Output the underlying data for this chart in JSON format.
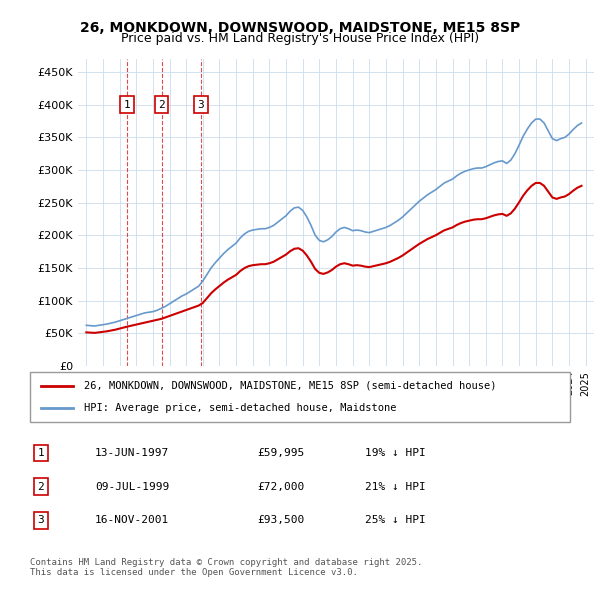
{
  "title_line1": "26, MONKDOWN, DOWNSWOOD, MAIDSTONE, ME15 8SP",
  "title_line2": "Price paid vs. HM Land Registry's House Price Index (HPI)",
  "sale_dates": [
    "1997-06-13",
    "1999-07-09",
    "2001-11-16"
  ],
  "sale_prices": [
    59995,
    72000,
    93500
  ],
  "sale_labels": [
    "1",
    "2",
    "3"
  ],
  "legend_line1": "26, MONKDOWN, DOWNSWOOD, MAIDSTONE, ME15 8SP (semi-detached house)",
  "legend_line2": "HPI: Average price, semi-detached house, Maidstone",
  "table_data": [
    [
      "1",
      "13-JUN-1997",
      "£59,995",
      "19% ↓ HPI"
    ],
    [
      "2",
      "09-JUL-1999",
      "£72,000",
      "21% ↓ HPI"
    ],
    [
      "3",
      "16-NOV-2001",
      "£93,500",
      "25% ↓ HPI"
    ]
  ],
  "footer": "Contains HM Land Registry data © Crown copyright and database right 2025.\nThis data is licensed under the Open Government Licence v3.0.",
  "price_color": "#cc0000",
  "hpi_color": "#6699cc",
  "ylim": [
    0,
    470000
  ],
  "yticks": [
    0,
    50000,
    100000,
    150000,
    200000,
    250000,
    300000,
    350000,
    400000,
    450000
  ],
  "hpi_data": {
    "dates": [
      1995.0,
      1995.25,
      1995.5,
      1995.75,
      1996.0,
      1996.25,
      1996.5,
      1996.75,
      1997.0,
      1997.25,
      1997.5,
      1997.75,
      1998.0,
      1998.25,
      1998.5,
      1998.75,
      1999.0,
      1999.25,
      1999.5,
      1999.75,
      2000.0,
      2000.25,
      2000.5,
      2000.75,
      2001.0,
      2001.25,
      2001.5,
      2001.75,
      2002.0,
      2002.25,
      2002.5,
      2002.75,
      2003.0,
      2003.25,
      2003.5,
      2003.75,
      2004.0,
      2004.25,
      2004.5,
      2004.75,
      2005.0,
      2005.25,
      2005.5,
      2005.75,
      2006.0,
      2006.25,
      2006.5,
      2006.75,
      2007.0,
      2007.25,
      2007.5,
      2007.75,
      2008.0,
      2008.25,
      2008.5,
      2008.75,
      2009.0,
      2009.25,
      2009.5,
      2009.75,
      2010.0,
      2010.25,
      2010.5,
      2010.75,
      2011.0,
      2011.25,
      2011.5,
      2011.75,
      2012.0,
      2012.25,
      2012.5,
      2012.75,
      2013.0,
      2013.25,
      2013.5,
      2013.75,
      2014.0,
      2014.25,
      2014.5,
      2014.75,
      2015.0,
      2015.25,
      2015.5,
      2015.75,
      2016.0,
      2016.25,
      2016.5,
      2016.75,
      2017.0,
      2017.25,
      2017.5,
      2017.75,
      2018.0,
      2018.25,
      2018.5,
      2018.75,
      2019.0,
      2019.25,
      2019.5,
      2019.75,
      2020.0,
      2020.25,
      2020.5,
      2020.75,
      2021.0,
      2021.25,
      2021.5,
      2021.75,
      2022.0,
      2022.25,
      2022.5,
      2022.75,
      2023.0,
      2023.25,
      2023.5,
      2023.75,
      2024.0,
      2024.25,
      2024.5,
      2024.75
    ],
    "values": [
      62000,
      61500,
      61000,
      62000,
      63000,
      64000,
      65500,
      67000,
      69000,
      71000,
      73000,
      75000,
      77000,
      79000,
      81000,
      82000,
      83000,
      85000,
      88000,
      91000,
      95000,
      99000,
      103000,
      107000,
      110000,
      114000,
      118000,
      122000,
      130000,
      140000,
      150000,
      158000,
      165000,
      172000,
      178000,
      183000,
      188000,
      196000,
      202000,
      206000,
      208000,
      209000,
      210000,
      210000,
      212000,
      215000,
      220000,
      225000,
      230000,
      237000,
      242000,
      243000,
      238000,
      228000,
      215000,
      200000,
      192000,
      190000,
      193000,
      198000,
      205000,
      210000,
      212000,
      210000,
      207000,
      208000,
      207000,
      205000,
      204000,
      206000,
      208000,
      210000,
      212000,
      215000,
      219000,
      223000,
      228000,
      234000,
      240000,
      246000,
      252000,
      257000,
      262000,
      266000,
      270000,
      275000,
      280000,
      283000,
      286000,
      291000,
      295000,
      298000,
      300000,
      302000,
      303000,
      303000,
      305000,
      308000,
      311000,
      313000,
      314000,
      310000,
      315000,
      325000,
      338000,
      352000,
      363000,
      372000,
      378000,
      378000,
      372000,
      360000,
      348000,
      345000,
      348000,
      350000,
      355000,
      362000,
      368000,
      372000
    ]
  },
  "price_series": {
    "dates": [
      1995.0,
      1997.45,
      1999.52,
      2001.88,
      2025.0
    ],
    "values": [
      50000,
      59995,
      72000,
      93500,
      265000
    ]
  }
}
